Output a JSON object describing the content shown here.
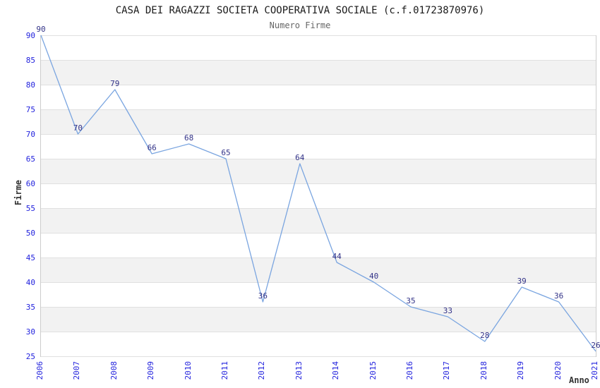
{
  "chart_data": {
    "type": "line",
    "title": "CASA DEI RAGAZZI SOCIETA COOPERATIVA SOCIALE (c.f.01723870976)",
    "subtitle": "Numero Firme",
    "xlabel": "Anno",
    "ylabel": "Firme",
    "categories": [
      "2006",
      "2007",
      "2008",
      "2009",
      "2010",
      "2011",
      "2012",
      "2013",
      "2014",
      "2015",
      "2016",
      "2017",
      "2018",
      "2019",
      "2020",
      "2021"
    ],
    "series": [
      {
        "name": "Numero Firme",
        "values": [
          90,
          70,
          79,
          66,
          68,
          65,
          36,
          64,
          44,
          40,
          35,
          33,
          28,
          39,
          36,
          26
        ]
      }
    ],
    "point_labels_visible": true,
    "ylim": [
      25,
      90
    ],
    "y_ticks": [
      90,
      85,
      80,
      75,
      70,
      65,
      60,
      55,
      50,
      45,
      40,
      35,
      30,
      25
    ],
    "ytick_step": 5,
    "grid": "horizontal",
    "alternating_bands": true,
    "legend": "none",
    "colors": {
      "line": "#7aa5e0",
      "tick_labels": "#2222dd",
      "point_labels": "#333388",
      "band": "#f2f2f2",
      "gridline": "#e0e0e0",
      "axis_line": "#cccccc",
      "title": "#1a1a1a",
      "subtitle": "#666666",
      "axis_titles": "#333333",
      "background": "#ffffff"
    }
  }
}
